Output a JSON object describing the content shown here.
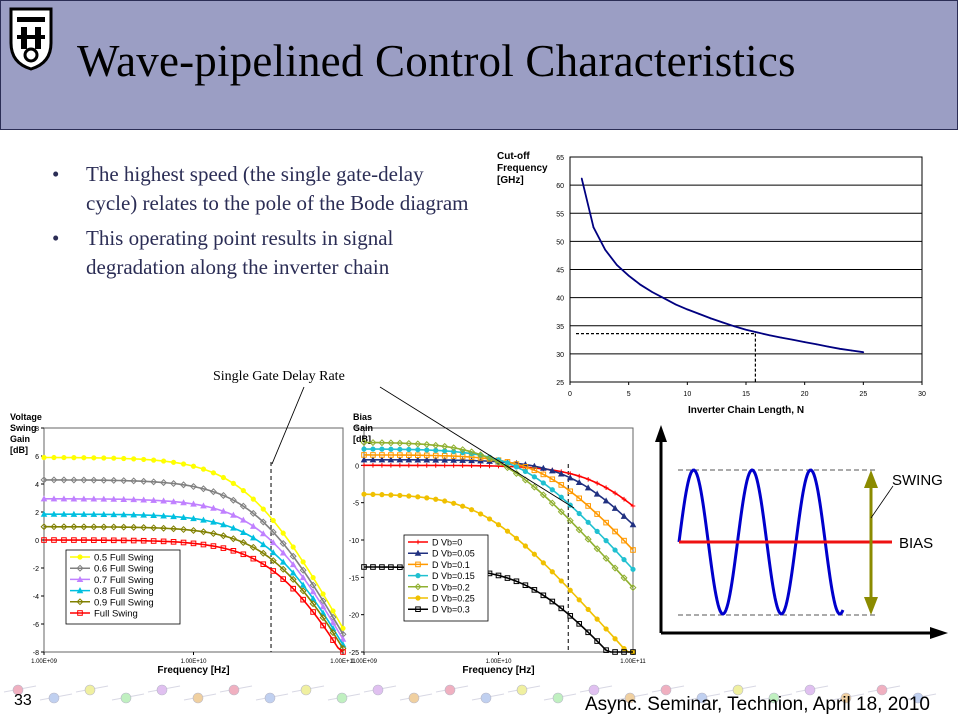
{
  "slide": {
    "title": "Wave-pipelined Control Characteristics",
    "bullets": [
      "The highest speed (the single gate-delay cycle) relates to the pole of the Bode diagram",
      "This operating point results in signal degradation along the inverter chain"
    ],
    "bullet_glyph": "•",
    "annotation": "Single Gate Delay Rate",
    "footer_number": "33",
    "footer_text": "Async. Seminar, Technion, April 18, 2010",
    "colors": {
      "header": "#9b9ec4",
      "text": "#2b2d55",
      "curve": "#000080"
    }
  },
  "chart_data": [
    {
      "id": "cutoff",
      "type": "line",
      "ylabel_lines": [
        "Cut-off",
        "Frequency",
        "[GHz]"
      ],
      "xlabel": "Inverter Chain Length, N",
      "xlim": [
        0,
        30
      ],
      "ylim": [
        25,
        65
      ],
      "xticks": [
        0,
        5,
        10,
        15,
        20,
        25,
        30
      ],
      "yticks": [
        25,
        30,
        35,
        40,
        45,
        50,
        55,
        60,
        65
      ],
      "grid": "horizontal",
      "series": [
        {
          "color": "#000080",
          "x": [
            1,
            2,
            3,
            4,
            5,
            6,
            7,
            8,
            9,
            10,
            11,
            12,
            13,
            14,
            15,
            16,
            17,
            18,
            19,
            20,
            21,
            22,
            23,
            24,
            25
          ],
          "y": [
            61.2,
            52.5,
            48.5,
            45.8,
            43.9,
            42.3,
            41.0,
            39.9,
            38.8,
            37.9,
            37.1,
            36.3,
            35.6,
            34.9,
            34.3,
            33.8,
            33.3,
            32.9,
            32.5,
            32.1,
            31.7,
            31.3,
            30.9,
            30.6,
            30.3
          ]
        }
      ],
      "marker": {
        "x": 15.8,
        "y": 33.6
      }
    },
    {
      "id": "voltage-swing",
      "type": "line",
      "ylabel_lines": [
        "Voltage",
        "Swing",
        "Gain",
        "[dB]"
      ],
      "xlabel": "Frequency [Hz]",
      "xscale": "log",
      "xlim": [
        1000000000.0,
        100000000000.0
      ],
      "ylim": [
        -8,
        8
      ],
      "xtick_labels": [
        "1.00E+09",
        "1.00E+10",
        "1.00E+11"
      ],
      "yticks": [
        -8,
        -6,
        -4,
        -2,
        0,
        2,
        4,
        6,
        8
      ],
      "legend": "lower-left",
      "marker_line_x": 33000000000.0,
      "series": [
        {
          "name": "0.5 Full Swing",
          "color": "#ffff00",
          "marker": "circle",
          "dc": 5.9,
          "pole": 32000000000.0
        },
        {
          "name": "0.6 Full Swing",
          "color": "#808080",
          "marker": "diamond",
          "dc": 4.3,
          "pole": 37000000000.0
        },
        {
          "name": "0.7 Full Swing",
          "color": "#c080ff",
          "marker": "triangle",
          "dc": 2.95,
          "pole": 42000000000.0
        },
        {
          "name": "0.8 Full Swing",
          "color": "#00c0e0",
          "marker": "triangle",
          "dc": 1.85,
          "pole": 46000000000.0
        },
        {
          "name": "0.9 Full Swing",
          "color": "#808000",
          "marker": "diamond",
          "dc": 0.95,
          "pole": 50000000000.0
        },
        {
          "name": "Full Swing",
          "color": "#ff0000",
          "marker": "square",
          "dc": 0.0,
          "pole": 53000000000.0
        }
      ]
    },
    {
      "id": "bias",
      "type": "line",
      "ylabel_lines": [
        "Bias",
        "Gain",
        "[dB]"
      ],
      "xlabel": "Frequency [Hz]",
      "xscale": "log",
      "xlim": [
        1000000000.0,
        100000000000.0
      ],
      "ylim": [
        -25,
        5
      ],
      "xtick_labels": [
        "1.00E+09",
        "1.00E+10",
        "1.00E+11"
      ],
      "yticks": [
        -25,
        -20,
        -15,
        -10,
        -5,
        0,
        5
      ],
      "legend": "lower-left",
      "marker_line_x": 33000000000.0,
      "series": [
        {
          "name": "D Vb=0",
          "color": "#ff0000",
          "marker": "plus",
          "dc": 0.0,
          "pole": 80000000000.0
        },
        {
          "name": "D Vb=0.05",
          "color": "#203080",
          "marker": "triangle",
          "dc": 0.75,
          "pole": 50000000000.0
        },
        {
          "name": "D Vb=0.1",
          "color": "#ff9900",
          "marker": "square",
          "dc": 1.4,
          "pole": 30000000000.0
        },
        {
          "name": "D Vb=0.15",
          "color": "#20c0d0",
          "marker": "circle",
          "dc": 2.2,
          "pole": 20000000000.0
        },
        {
          "name": "D Vb=0.2",
          "color": "#90b030",
          "marker": "diamond",
          "dc": 3.1,
          "pole": 13500000000.0
        },
        {
          "name": "D Vb=0.25",
          "color": "#f0c000",
          "marker": "circle",
          "dc": -3.8,
          "pole": 10000000000.0
        },
        {
          "name": "D Vb=0.3",
          "color": "#000000",
          "marker": "square",
          "dc": -13.6,
          "pole": 23000000000.0
        }
      ]
    }
  ],
  "waveform": {
    "swing_label": "SWING",
    "bias_label": "BIAS",
    "colors": {
      "sine": "#0000cc",
      "bias": "#ee1111",
      "arrow": "#8b8b00",
      "axes": "#000000"
    }
  }
}
